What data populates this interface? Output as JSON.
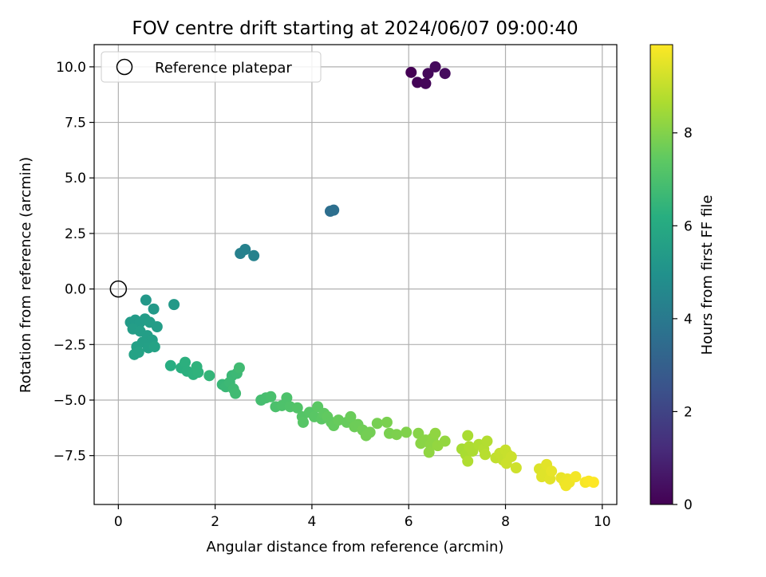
{
  "chart_data": {
    "type": "scatter",
    "title": "FOV centre drift starting at 2024/06/07 09:00:40",
    "xlabel": "Angular distance from reference (arcmin)",
    "ylabel": "Rotation from reference (arcmin)",
    "xlim": [
      -0.5,
      10.3
    ],
    "ylim": [
      -9.7,
      11.0
    ],
    "xticks": [
      0,
      2,
      4,
      6,
      8,
      10
    ],
    "xtick_labels": [
      "0",
      "2",
      "4",
      "6",
      "8",
      "10"
    ],
    "yticks": [
      -7.5,
      -5.0,
      -2.5,
      0.0,
      2.5,
      5.0,
      7.5,
      10.0
    ],
    "ytick_labels": [
      "−7.5",
      "−5.0",
      "−2.5",
      "0.0",
      "2.5",
      "5.0",
      "7.5",
      "10.0"
    ],
    "grid": true,
    "legend": {
      "position": "upper-left",
      "entries": [
        {
          "label": "Reference platepar",
          "marker": "open-circle"
        }
      ]
    },
    "reference_point": {
      "x": 0,
      "y": 0
    },
    "colorbar": {
      "label": "Hours from first FF file",
      "colormap": "viridis",
      "range": [
        0,
        9.9
      ],
      "ticks": [
        0,
        2,
        4,
        6,
        8
      ],
      "tick_labels": [
        "0",
        "2",
        "4",
        "6",
        "8"
      ]
    },
    "points": [
      {
        "x": 6.05,
        "y": 9.75,
        "c": 0.0
      },
      {
        "x": 6.18,
        "y": 9.3,
        "c": 0.1
      },
      {
        "x": 6.35,
        "y": 9.25,
        "c": 0.15
      },
      {
        "x": 6.4,
        "y": 9.7,
        "c": 0.2
      },
      {
        "x": 6.55,
        "y": 10.0,
        "c": 0.25
      },
      {
        "x": 6.75,
        "y": 9.7,
        "c": 0.3
      },
      {
        "x": 4.38,
        "y": 3.5,
        "c": 3.6
      },
      {
        "x": 4.45,
        "y": 3.55,
        "c": 3.65
      },
      {
        "x": 2.52,
        "y": 1.6,
        "c": 4.3
      },
      {
        "x": 2.62,
        "y": 1.78,
        "c": 4.35
      },
      {
        "x": 2.8,
        "y": 1.5,
        "c": 4.4
      },
      {
        "x": 0.57,
        "y": -0.5,
        "c": 5.3
      },
      {
        "x": 1.15,
        "y": -0.7,
        "c": 5.35
      },
      {
        "x": 0.73,
        "y": -0.9,
        "c": 5.35
      },
      {
        "x": 0.25,
        "y": -1.5,
        "c": 5.4
      },
      {
        "x": 0.35,
        "y": -1.4,
        "c": 5.4
      },
      {
        "x": 0.45,
        "y": -1.5,
        "c": 5.45
      },
      {
        "x": 0.55,
        "y": -1.35,
        "c": 5.45
      },
      {
        "x": 0.65,
        "y": -1.5,
        "c": 5.5
      },
      {
        "x": 0.8,
        "y": -1.7,
        "c": 5.5
      },
      {
        "x": 0.3,
        "y": -1.8,
        "c": 5.5
      },
      {
        "x": 0.45,
        "y": -1.9,
        "c": 5.55
      },
      {
        "x": 0.6,
        "y": -2.1,
        "c": 5.55
      },
      {
        "x": 0.7,
        "y": -2.3,
        "c": 5.6
      },
      {
        "x": 0.5,
        "y": -2.4,
        "c": 5.6
      },
      {
        "x": 0.38,
        "y": -2.6,
        "c": 5.65
      },
      {
        "x": 0.62,
        "y": -2.65,
        "c": 5.65
      },
      {
        "x": 0.75,
        "y": -2.6,
        "c": 5.7
      },
      {
        "x": 0.33,
        "y": -2.95,
        "c": 5.7
      },
      {
        "x": 0.42,
        "y": -2.85,
        "c": 5.72
      },
      {
        "x": 1.08,
        "y": -3.45,
        "c": 6.2
      },
      {
        "x": 1.3,
        "y": -3.55,
        "c": 6.25
      },
      {
        "x": 1.38,
        "y": -3.3,
        "c": 6.3
      },
      {
        "x": 1.42,
        "y": -3.7,
        "c": 6.3
      },
      {
        "x": 1.55,
        "y": -3.85,
        "c": 6.35
      },
      {
        "x": 1.62,
        "y": -3.5,
        "c": 6.4
      },
      {
        "x": 1.65,
        "y": -3.75,
        "c": 6.4
      },
      {
        "x": 1.88,
        "y": -3.9,
        "c": 6.5
      },
      {
        "x": 2.15,
        "y": -4.3,
        "c": 6.6
      },
      {
        "x": 2.22,
        "y": -4.4,
        "c": 6.65
      },
      {
        "x": 2.35,
        "y": -3.9,
        "c": 6.65
      },
      {
        "x": 2.3,
        "y": -4.2,
        "c": 6.7
      },
      {
        "x": 2.45,
        "y": -3.8,
        "c": 6.7
      },
      {
        "x": 2.38,
        "y": -4.5,
        "c": 6.75
      },
      {
        "x": 2.5,
        "y": -3.55,
        "c": 6.8
      },
      {
        "x": 2.42,
        "y": -4.7,
        "c": 6.8
      },
      {
        "x": 2.95,
        "y": -5.0,
        "c": 6.9
      },
      {
        "x": 3.05,
        "y": -4.9,
        "c": 6.95
      },
      {
        "x": 3.15,
        "y": -4.85,
        "c": 7.0
      },
      {
        "x": 3.25,
        "y": -5.3,
        "c": 7.05
      },
      {
        "x": 3.38,
        "y": -5.25,
        "c": 7.1
      },
      {
        "x": 3.48,
        "y": -4.9,
        "c": 7.1
      },
      {
        "x": 3.55,
        "y": -5.3,
        "c": 7.15
      },
      {
        "x": 3.7,
        "y": -5.35,
        "c": 7.2
      },
      {
        "x": 3.8,
        "y": -5.75,
        "c": 7.25
      },
      {
        "x": 3.82,
        "y": -6.0,
        "c": 7.3
      },
      {
        "x": 3.95,
        "y": -5.55,
        "c": 7.3
      },
      {
        "x": 4.05,
        "y": -5.75,
        "c": 7.35
      },
      {
        "x": 4.12,
        "y": -5.3,
        "c": 7.4
      },
      {
        "x": 4.2,
        "y": -5.85,
        "c": 7.4
      },
      {
        "x": 4.25,
        "y": -5.6,
        "c": 7.45
      },
      {
        "x": 4.32,
        "y": -5.75,
        "c": 7.5
      },
      {
        "x": 4.4,
        "y": -6.0,
        "c": 7.5
      },
      {
        "x": 4.45,
        "y": -6.15,
        "c": 7.55
      },
      {
        "x": 4.55,
        "y": -5.9,
        "c": 7.6
      },
      {
        "x": 4.72,
        "y": -6.0,
        "c": 7.6
      },
      {
        "x": 4.8,
        "y": -5.75,
        "c": 7.65
      },
      {
        "x": 4.88,
        "y": -6.2,
        "c": 7.7
      },
      {
        "x": 4.95,
        "y": -6.1,
        "c": 7.7
      },
      {
        "x": 5.05,
        "y": -6.35,
        "c": 7.75
      },
      {
        "x": 5.12,
        "y": -6.6,
        "c": 7.8
      },
      {
        "x": 5.2,
        "y": -6.45,
        "c": 7.8
      },
      {
        "x": 5.35,
        "y": -6.05,
        "c": 7.85
      },
      {
        "x": 5.55,
        "y": -6.0,
        "c": 7.9
      },
      {
        "x": 5.6,
        "y": -6.5,
        "c": 7.9
      },
      {
        "x": 5.75,
        "y": -6.55,
        "c": 7.95
      },
      {
        "x": 5.95,
        "y": -6.45,
        "c": 8.0
      },
      {
        "x": 6.2,
        "y": -6.5,
        "c": 8.1
      },
      {
        "x": 6.25,
        "y": -6.95,
        "c": 8.15
      },
      {
        "x": 6.35,
        "y": -6.8,
        "c": 8.15
      },
      {
        "x": 6.45,
        "y": -7.0,
        "c": 8.2
      },
      {
        "x": 6.5,
        "y": -6.7,
        "c": 8.2
      },
      {
        "x": 6.55,
        "y": -6.5,
        "c": 8.25
      },
      {
        "x": 6.42,
        "y": -7.35,
        "c": 8.25
      },
      {
        "x": 6.6,
        "y": -7.05,
        "c": 8.3
      },
      {
        "x": 6.75,
        "y": -6.85,
        "c": 8.3
      },
      {
        "x": 7.1,
        "y": -7.2,
        "c": 8.6
      },
      {
        "x": 7.18,
        "y": -7.45,
        "c": 8.65
      },
      {
        "x": 7.22,
        "y": -6.6,
        "c": 8.65
      },
      {
        "x": 7.25,
        "y": -7.1,
        "c": 8.7
      },
      {
        "x": 7.32,
        "y": -7.3,
        "c": 8.7
      },
      {
        "x": 7.22,
        "y": -7.75,
        "c": 8.75
      },
      {
        "x": 7.45,
        "y": -7.0,
        "c": 8.75
      },
      {
        "x": 7.55,
        "y": -7.2,
        "c": 8.8
      },
      {
        "x": 7.62,
        "y": -6.85,
        "c": 8.8
      },
      {
        "x": 7.58,
        "y": -7.45,
        "c": 8.85
      },
      {
        "x": 7.8,
        "y": -7.6,
        "c": 9.0
      },
      {
        "x": 7.88,
        "y": -7.4,
        "c": 9.05
      },
      {
        "x": 7.95,
        "y": -7.7,
        "c": 9.05
      },
      {
        "x": 8.0,
        "y": -7.25,
        "c": 9.1
      },
      {
        "x": 8.05,
        "y": -7.45,
        "c": 9.1
      },
      {
        "x": 8.02,
        "y": -7.85,
        "c": 9.15
      },
      {
        "x": 8.12,
        "y": -7.55,
        "c": 9.15
      },
      {
        "x": 8.22,
        "y": -8.05,
        "c": 9.2
      },
      {
        "x": 8.7,
        "y": -8.1,
        "c": 9.4
      },
      {
        "x": 8.75,
        "y": -8.45,
        "c": 9.45
      },
      {
        "x": 8.82,
        "y": -8.25,
        "c": 9.45
      },
      {
        "x": 8.85,
        "y": -7.9,
        "c": 9.5
      },
      {
        "x": 8.92,
        "y": -8.55,
        "c": 9.5
      },
      {
        "x": 8.95,
        "y": -8.2,
        "c": 9.55
      },
      {
        "x": 9.15,
        "y": -8.5,
        "c": 9.6
      },
      {
        "x": 9.22,
        "y": -8.7,
        "c": 9.65
      },
      {
        "x": 9.28,
        "y": -8.55,
        "c": 9.65
      },
      {
        "x": 9.25,
        "y": -8.85,
        "c": 9.7
      },
      {
        "x": 9.32,
        "y": -8.7,
        "c": 9.7
      },
      {
        "x": 9.45,
        "y": -8.45,
        "c": 9.75
      },
      {
        "x": 9.65,
        "y": -8.7,
        "c": 9.8
      },
      {
        "x": 9.72,
        "y": -8.65,
        "c": 9.85
      },
      {
        "x": 9.82,
        "y": -8.7,
        "c": 9.9
      }
    ]
  }
}
